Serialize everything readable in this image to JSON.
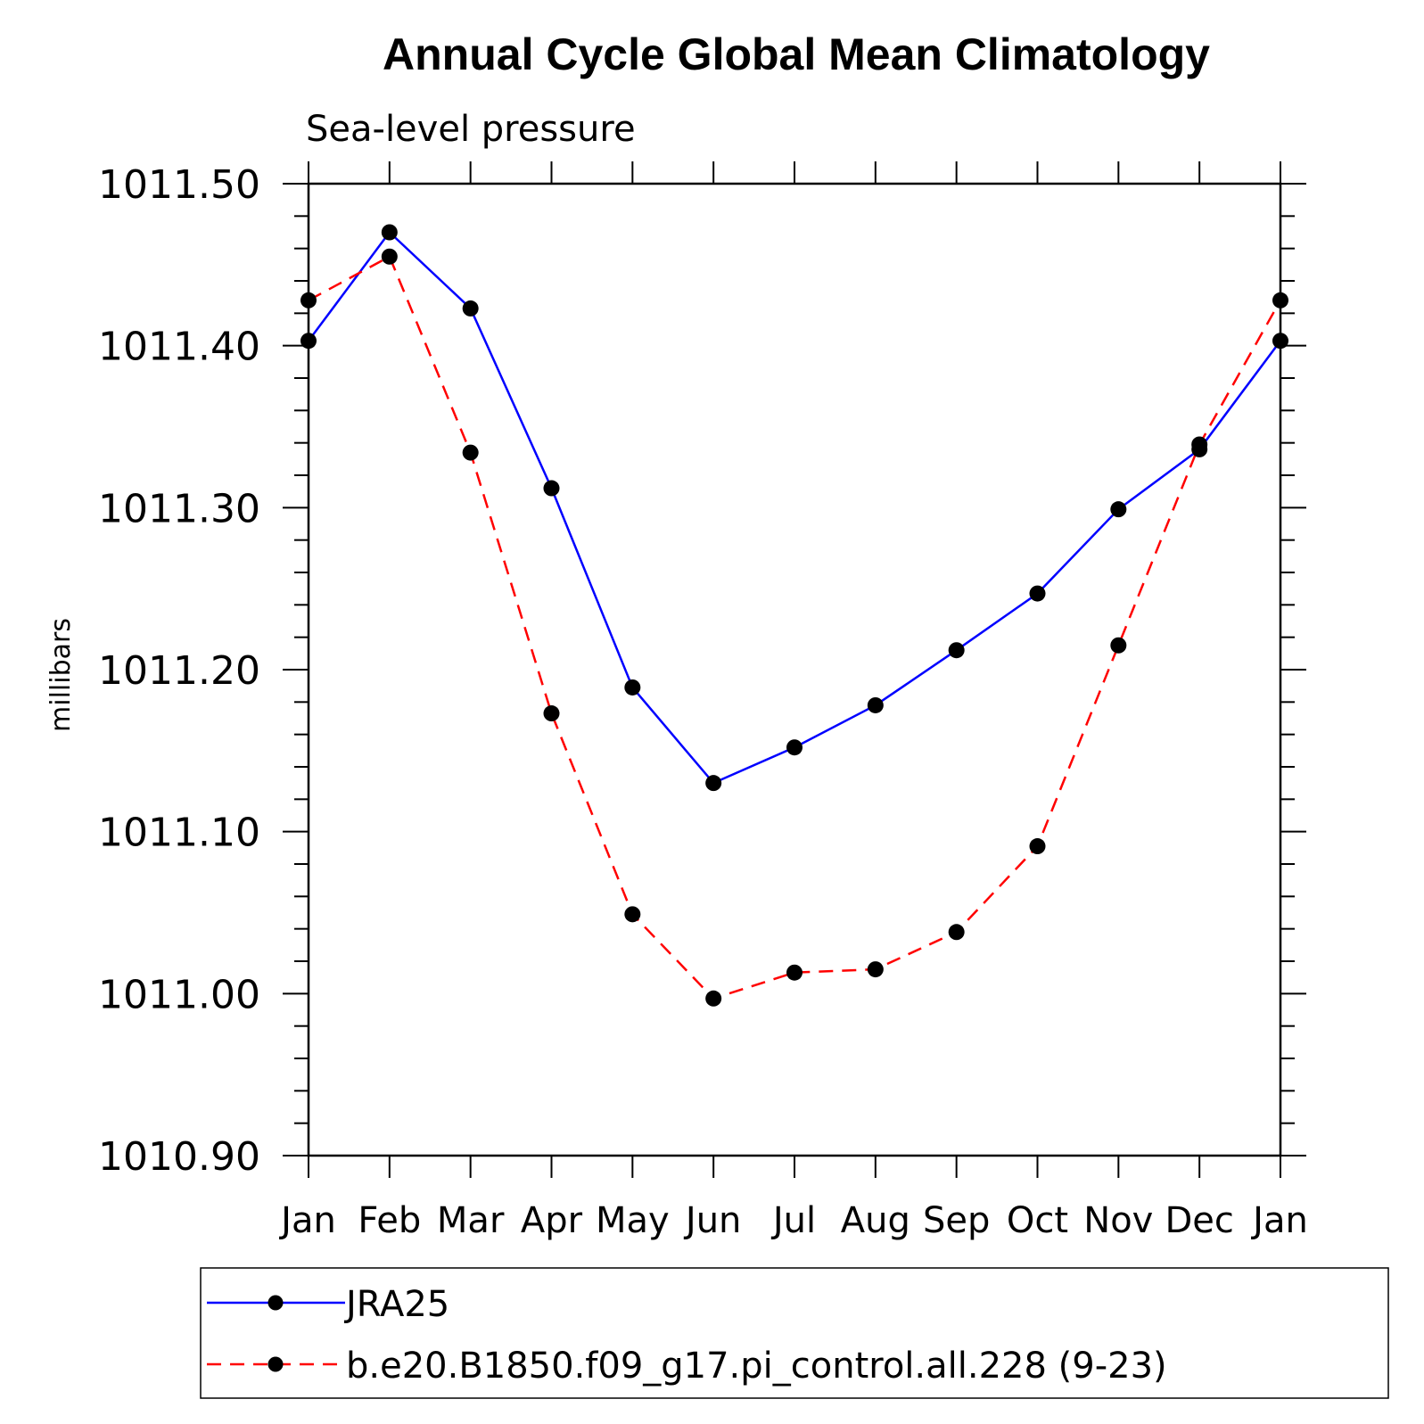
{
  "chart_data": {
    "type": "line",
    "title": "Annual Cycle Global Mean Climatology",
    "subtitle": "Sea-level pressure",
    "ylabel": "millibars",
    "xlabel": "",
    "categories": [
      "Jan",
      "Feb",
      "Mar",
      "Apr",
      "May",
      "Jun",
      "Jul",
      "Aug",
      "Sep",
      "Oct",
      "Nov",
      "Dec",
      "Jan"
    ],
    "ylim": [
      1010.9,
      1011.5
    ],
    "yticks": [
      "1010.90",
      "1011.00",
      "1011.10",
      "1011.20",
      "1011.30",
      "1011.40",
      "1011.50"
    ],
    "ytick_values": [
      1010.9,
      1011.0,
      1011.1,
      1011.2,
      1011.3,
      1011.4,
      1011.5
    ],
    "grid": false,
    "legend_position": "bottom",
    "series": [
      {
        "name": "JRA25",
        "color": "#0000ff",
        "line_style": "solid",
        "marker": "filled-circle",
        "values": [
          1011.403,
          1011.47,
          1011.423,
          1011.312,
          1011.189,
          1011.13,
          1011.152,
          1011.178,
          1011.212,
          1011.247,
          1011.299,
          1011.336,
          1011.403
        ]
      },
      {
        "name": "b.e20.B1850.f09_g17.pi_control.all.228 (9-23)",
        "color": "#ff0000",
        "line_style": "dashed",
        "marker": "filled-circle",
        "values": [
          1011.428,
          1011.455,
          1011.334,
          1011.173,
          1011.049,
          1010.997,
          1011.013,
          1011.015,
          1011.038,
          1011.091,
          1011.215,
          1011.339,
          1011.428
        ]
      }
    ]
  }
}
